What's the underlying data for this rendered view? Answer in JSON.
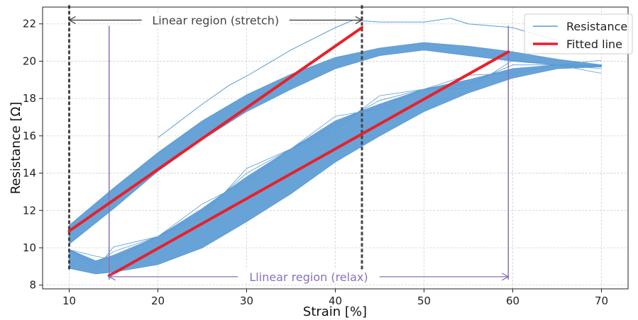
{
  "chart_data": {
    "type": "line",
    "xlabel": "Strain [%]",
    "ylabel": "Resistance [Ω]",
    "xlim": [
      7,
      73
    ],
    "ylim": [
      7.8,
      22.9
    ],
    "xticks": [
      10,
      20,
      30,
      40,
      50,
      60,
      70
    ],
    "yticks": [
      8,
      10,
      12,
      14,
      16,
      18,
      20,
      22
    ],
    "grid": true,
    "legend_position": "top-right",
    "colors": {
      "resistance": "#5b9bd5",
      "fitted": "#e8202a",
      "stretch_marker": "#444444",
      "relax_marker": "#8a70b8"
    },
    "series": [
      {
        "name": "Resistance",
        "kind": "hysteresis-band",
        "stretch_upper": {
          "x": [
            10,
            15,
            20,
            25,
            30,
            35,
            40,
            45,
            50,
            55,
            60,
            65,
            70
          ],
          "y": [
            11.2,
            13.2,
            15.1,
            16.8,
            18.2,
            19.3,
            20.2,
            20.7,
            21.0,
            20.8,
            20.5,
            20.1,
            19.8
          ]
        },
        "stretch_lower": {
          "x": [
            10,
            15,
            20,
            25,
            30,
            35,
            40,
            45,
            50,
            55,
            60,
            65,
            70
          ],
          "y": [
            10.2,
            12.1,
            14.1,
            15.8,
            17.3,
            18.5,
            19.6,
            20.3,
            20.6,
            20.3,
            20.0,
            19.8,
            19.7
          ]
        },
        "relax_upper": {
          "x": [
            70,
            65,
            60,
            55,
            50,
            45,
            40,
            35,
            30,
            25,
            20,
            15,
            13,
            10
          ],
          "y": [
            19.8,
            19.8,
            19.6,
            19.0,
            18.5,
            17.7,
            16.8,
            15.3,
            13.8,
            12.1,
            10.6,
            9.6,
            9.3,
            9.9
          ]
        },
        "relax_lower": {
          "x": [
            70,
            65,
            60,
            55,
            50,
            45,
            40,
            35,
            30,
            25,
            20,
            15,
            13,
            10
          ],
          "y": [
            19.7,
            19.6,
            19.1,
            18.3,
            17.3,
            16.0,
            14.6,
            12.9,
            11.4,
            10.0,
            9.1,
            8.7,
            8.6,
            8.9
          ]
        },
        "excursion": {
          "x": [
            20,
            25,
            28,
            30,
            35,
            40,
            42,
            45,
            50,
            53,
            55,
            60,
            65
          ],
          "y": [
            15.9,
            17.7,
            18.7,
            19.2,
            20.6,
            21.8,
            22.2,
            22.1,
            22.1,
            22.3,
            22.0,
            21.8,
            21.1
          ]
        }
      },
      {
        "name": "Fitted line",
        "kind": "segments",
        "segments": [
          {
            "x": [
              10,
              43
            ],
            "y": [
              10.9,
              21.8
            ]
          },
          {
            "x": [
              14.5,
              59.5
            ],
            "y": [
              8.5,
              20.5
            ]
          }
        ]
      }
    ],
    "annotations": [
      {
        "label": "Linear region (stretch)",
        "x_start": 10,
        "x_end": 43,
        "y": 22.2
      },
      {
        "label": "Llinear region (relax)",
        "x_start": 14.5,
        "x_end": 59.5,
        "y": 8.45
      }
    ],
    "region_markers": {
      "stretch": {
        "x": [
          10,
          43
        ],
        "y_range": [
          8.8,
          23.0
        ]
      },
      "relax": {
        "x": [
          14.5,
          59.5
        ],
        "y_range": [
          8.3,
          21.9
        ]
      }
    }
  }
}
